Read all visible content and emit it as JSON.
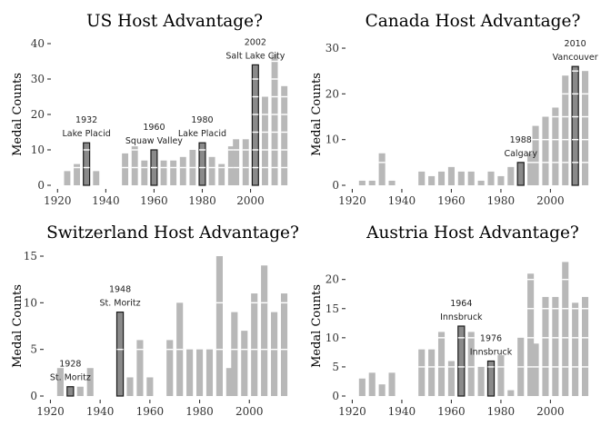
{
  "chart_data": [
    {
      "type": "bar",
      "title": "US Host Advantage?",
      "xlabel": "",
      "ylabel": "Medal Counts",
      "xlim": [
        1918,
        2016
      ],
      "ylim": [
        0,
        40
      ],
      "xticks": [
        1920,
        1940,
        1960,
        1980,
        2000
      ],
      "yticks": [
        0,
        10,
        20,
        30,
        40
      ],
      "x": [
        1924,
        1928,
        1932,
        1936,
        1948,
        1952,
        1956,
        1960,
        1964,
        1968,
        1972,
        1976,
        1980,
        1984,
        1988,
        1992,
        1994,
        1998,
        2002,
        2006,
        2010,
        2014
      ],
      "values": [
        4,
        6,
        12,
        4,
        9,
        11,
        7,
        10,
        7,
        7,
        8,
        10,
        12,
        8,
        6,
        11,
        13,
        13,
        34,
        25,
        37,
        28
      ],
      "highlight_x": [
        1932,
        1960,
        1980,
        2002
      ],
      "annotations": [
        {
          "x": 1932,
          "year": "1932",
          "city": "Lake Placid"
        },
        {
          "x": 1960,
          "year": "1960",
          "city": "Squaw Valley"
        },
        {
          "x": 1980,
          "year": "1980",
          "city": "Lake Placid"
        },
        {
          "x": 2002,
          "year": "2002",
          "city": "Salt Lake City"
        }
      ]
    },
    {
      "type": "bar",
      "title": "Canada Host Advantage?",
      "xlabel": "",
      "ylabel": "Medal Counts",
      "xlim": [
        1918,
        2016
      ],
      "ylim": [
        0,
        31
      ],
      "xticks": [
        1920,
        1940,
        1960,
        1980,
        2000
      ],
      "yticks": [
        0,
        10,
        20,
        30
      ],
      "x": [
        1924,
        1928,
        1932,
        1936,
        1948,
        1952,
        1956,
        1960,
        1964,
        1968,
        1972,
        1976,
        1980,
        1984,
        1988,
        1992,
        1994,
        1998,
        2002,
        2006,
        2010,
        2014
      ],
      "values": [
        1,
        1,
        7,
        1,
        3,
        2,
        3,
        4,
        3,
        3,
        1,
        3,
        2,
        4,
        5,
        7,
        13,
        15,
        17,
        24,
        26,
        25
      ],
      "highlight_x": [
        1988,
        2010
      ],
      "annotations": [
        {
          "x": 1988,
          "year": "1988",
          "city": "Calgary"
        },
        {
          "x": 2010,
          "year": "2010",
          "city": "Vancouver"
        }
      ]
    },
    {
      "type": "bar",
      "title": "Switzerland Host Advantage?",
      "xlabel": "",
      "ylabel": "Medal Counts",
      "xlim": [
        1918,
        2016
      ],
      "ylim": [
        0,
        15
      ],
      "xticks": [
        1920,
        1940,
        1960,
        1980,
        2000
      ],
      "yticks": [
        0,
        5,
        10,
        15
      ],
      "x": [
        1924,
        1928,
        1932,
        1936,
        1948,
        1952,
        1956,
        1960,
        1968,
        1972,
        1976,
        1980,
        1984,
        1988,
        1992,
        1994,
        1998,
        2002,
        2006,
        2010,
        2014
      ],
      "values": [
        3,
        1,
        1,
        3,
        9,
        2,
        6,
        2,
        6,
        10,
        5,
        5,
        5,
        15,
        3,
        9,
        7,
        11,
        14,
        9,
        11
      ],
      "highlight_x": [
        1928,
        1948
      ],
      "annotations": [
        {
          "x": 1928,
          "year": "1928",
          "city": "St. Moritz"
        },
        {
          "x": 1948,
          "year": "1948",
          "city": "St. Moritz"
        }
      ]
    },
    {
      "type": "bar",
      "title": "Austria Host Advantage?",
      "xlabel": "",
      "ylabel": "Medal Counts",
      "xlim": [
        1918,
        2016
      ],
      "ylim": [
        0,
        24
      ],
      "xticks": [
        1920,
        1940,
        1960,
        1980,
        2000
      ],
      "yticks": [
        0,
        5,
        10,
        15,
        20
      ],
      "x": [
        1924,
        1928,
        1932,
        1936,
        1948,
        1952,
        1956,
        1960,
        1964,
        1968,
        1972,
        1976,
        1980,
        1984,
        1988,
        1992,
        1994,
        1998,
        2002,
        2006,
        2010,
        2014
      ],
      "values": [
        3,
        4,
        2,
        4,
        8,
        8,
        11,
        6,
        12,
        11,
        5,
        6,
        7,
        1,
        10,
        21,
        9,
        17,
        17,
        23,
        16,
        17
      ],
      "highlight_x": [
        1964,
        1976
      ],
      "annotations": [
        {
          "x": 1964,
          "year": "1964",
          "city": "Innsbruck"
        },
        {
          "x": 1976,
          "year": "1976",
          "city": "Innsbruck"
        }
      ]
    }
  ],
  "colors": {
    "bar": "#b8b8b8",
    "host_bar": "#8a8a8a",
    "host_outline": "#1a1a1a",
    "separator": "#ffffff"
  }
}
